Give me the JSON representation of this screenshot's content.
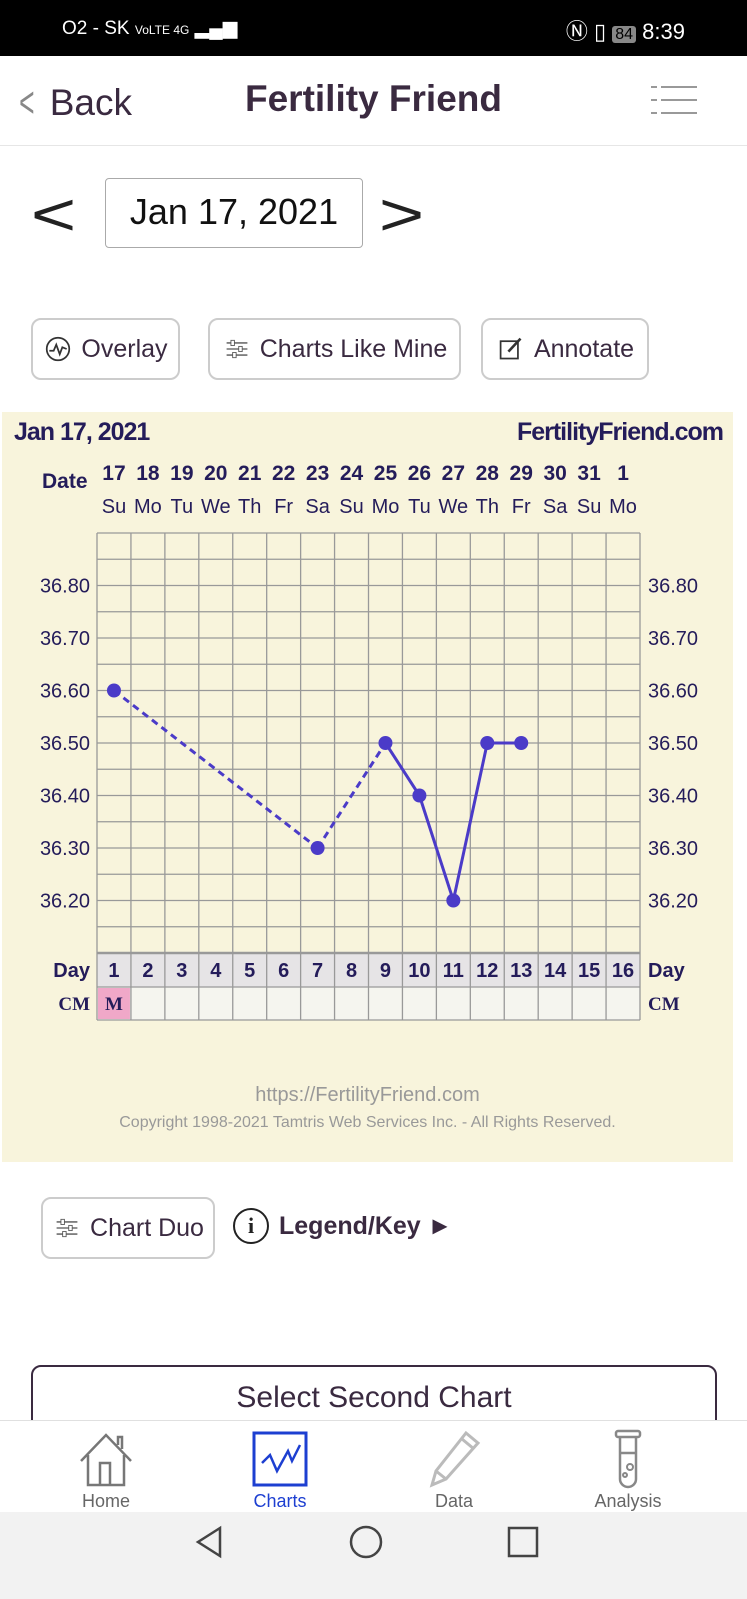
{
  "status_bar": {
    "carrier": "O2 - SK",
    "network": "VoLTE 4G",
    "battery": "84",
    "time": "8:39"
  },
  "header": {
    "back_label": "Back",
    "title": "Fertility Friend"
  },
  "date_nav": {
    "current_date": "Jan 17, 2021",
    "prev": "<",
    "next": ">"
  },
  "toolbar": {
    "overlay": "Overlay",
    "charts_like_mine": "Charts Like Mine",
    "annotate": "Annotate"
  },
  "chart_header": {
    "date": "Jan 17, 2021",
    "site": "FertilityFriend.com",
    "date_label": "Date",
    "day_label": "Day",
    "cm_label": "CM"
  },
  "chart_footer": {
    "url": "https://FertilityFriend.com",
    "copyright": "Copyright 1998-2021 Tamtris Web Services Inc. - All Rights Reserved."
  },
  "chart_data": {
    "type": "line",
    "dates": [
      "17",
      "18",
      "19",
      "20",
      "21",
      "22",
      "23",
      "24",
      "25",
      "26",
      "27",
      "28",
      "29",
      "30",
      "31",
      "1"
    ],
    "weekdays": [
      "Su",
      "Mo",
      "Tu",
      "We",
      "Th",
      "Fr",
      "Sa",
      "Su",
      "Mo",
      "Tu",
      "We",
      "Th",
      "Fr",
      "Sa",
      "Su",
      "Mo"
    ],
    "days": [
      1,
      2,
      3,
      4,
      5,
      6,
      7,
      8,
      9,
      10,
      11,
      12,
      13,
      14,
      15,
      16
    ],
    "y_ticks": [
      "36.80",
      "36.70",
      "36.60",
      "36.50",
      "36.40",
      "36.30",
      "36.20"
    ],
    "ylim": [
      36.1,
      36.9
    ],
    "grid": true,
    "line_color": "#4b3bc8",
    "points": [
      {
        "day": 1,
        "temp": 36.6
      },
      {
        "day": 7,
        "temp": 36.3
      },
      {
        "day": 9,
        "temp": 36.5
      },
      {
        "day": 10,
        "temp": 36.4
      },
      {
        "day": 11,
        "temp": 36.2
      },
      {
        "day": 12,
        "temp": 36.5
      },
      {
        "day": 13,
        "temp": 36.5
      }
    ],
    "dashed_segments_before_day": 9,
    "cm": [
      {
        "day": 1,
        "value": "M",
        "color": "#f0a8c8"
      }
    ]
  },
  "lower": {
    "chart_duo": "Chart Duo",
    "legend": "Legend/Key ►",
    "info_icon": "i",
    "select_second": "Select Second Chart"
  },
  "bottom_nav": {
    "items": [
      {
        "label": "Home",
        "icon": "home-icon"
      },
      {
        "label": "Charts",
        "icon": "chart-icon",
        "active": true
      },
      {
        "label": "Data",
        "icon": "pencil-icon"
      },
      {
        "label": "Analysis",
        "icon": "test-tube-icon"
      }
    ],
    "active_color": "#1d3fd1"
  }
}
